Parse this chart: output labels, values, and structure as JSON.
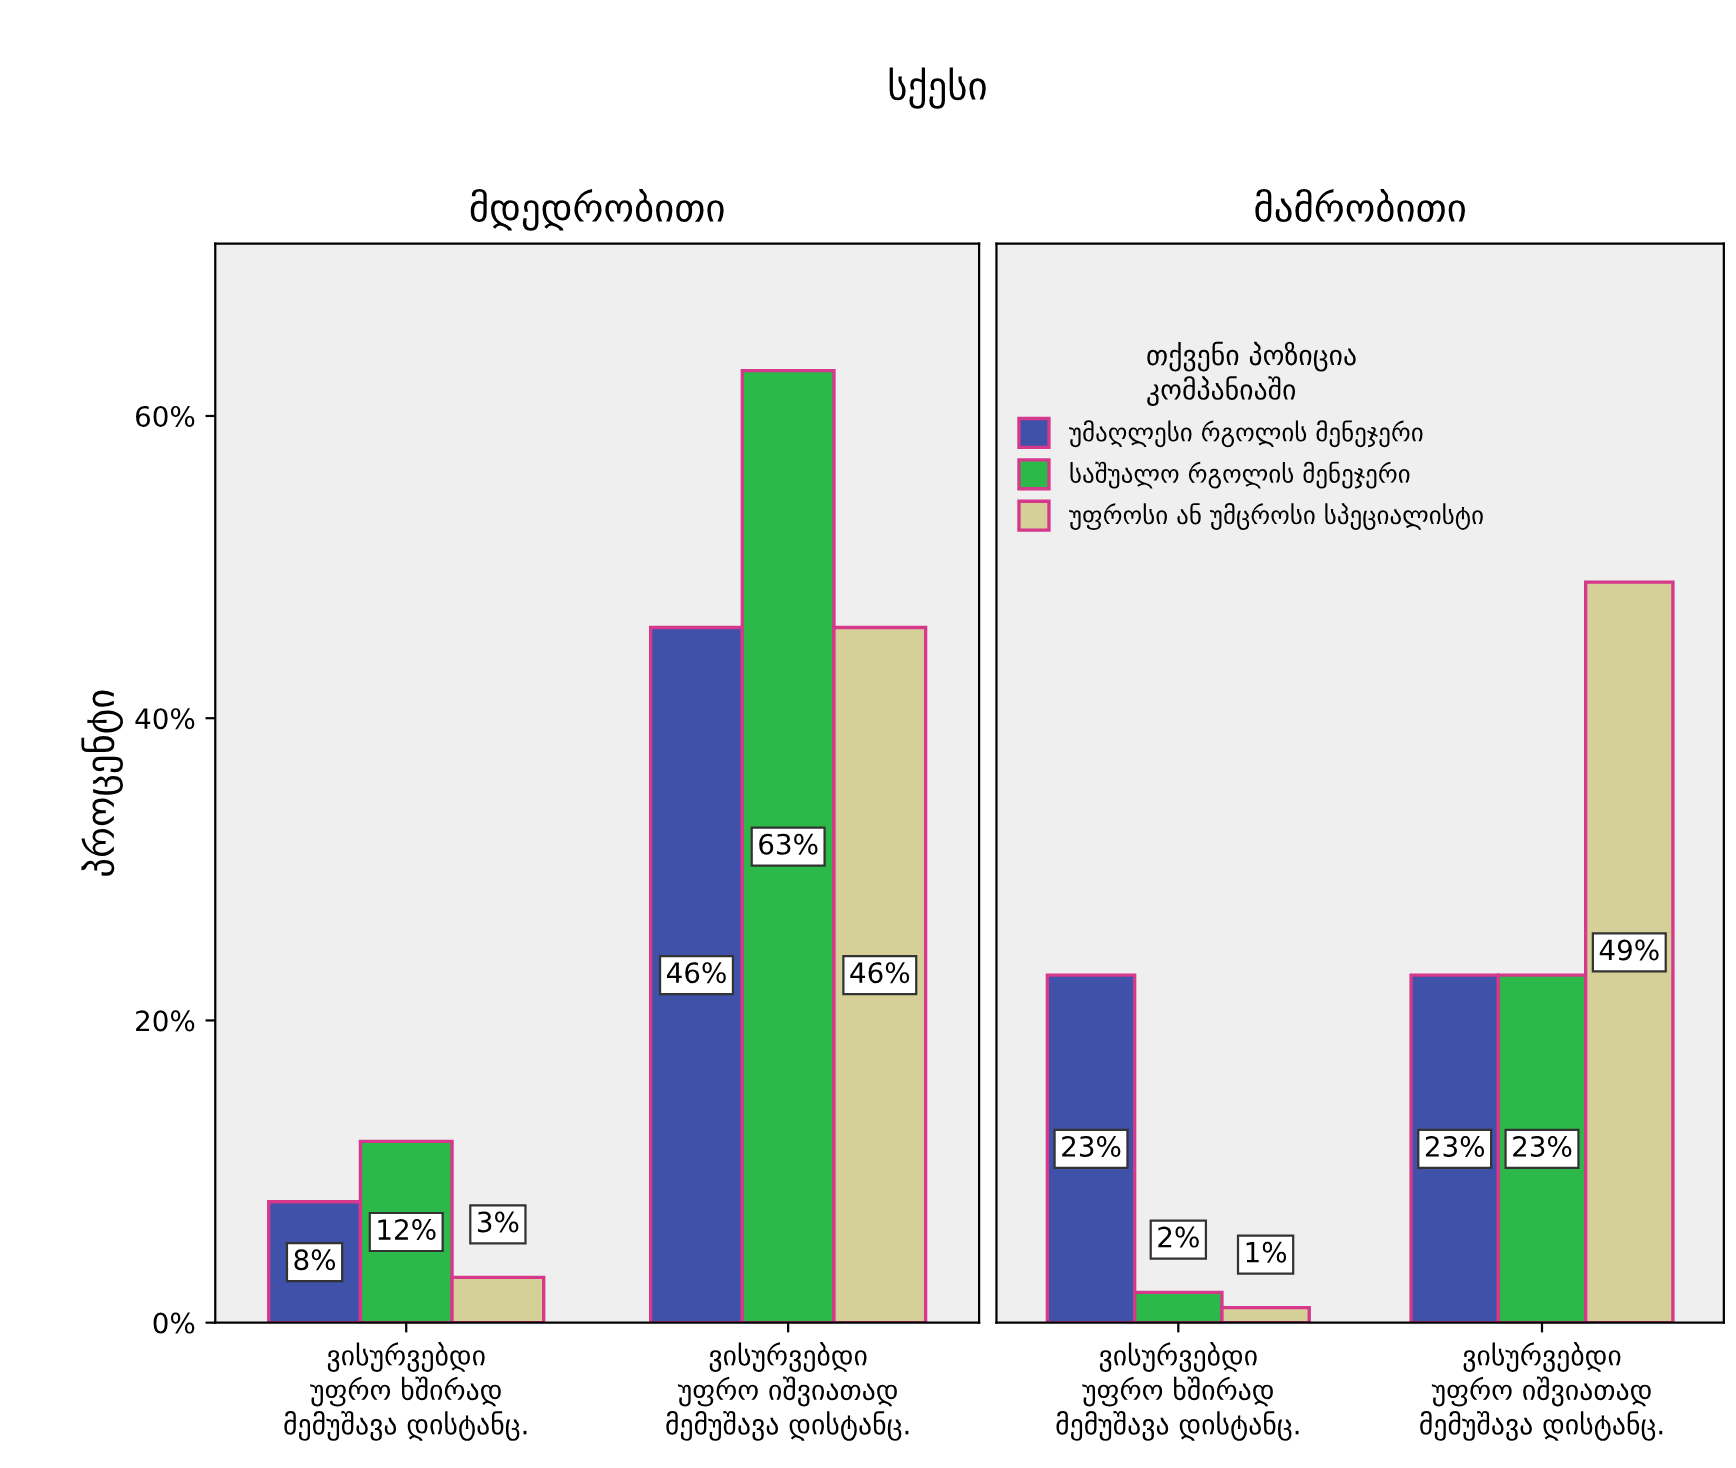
{
  "chart_data": [
    {
      "type": "bar",
      "title": "მდედრობითი",
      "ylabel": "პროცენტი",
      "annotations": [
        "სქესი"
      ],
      "categories": [
        "ვისურვებდი\nუფრო ხშირად\nმემუშავა დისტანც.",
        "ვისურვებდი\nუფრო იშვიათად\nმემუშავა დისტანც."
      ],
      "series": [
        {
          "color": "#3f51a8",
          "values": [
            8,
            46
          ],
          "value_labels": [
            "8%",
            "46%"
          ]
        },
        {
          "color": "#2db84a",
          "values": [
            12,
            63
          ],
          "value_labels": [
            "12%",
            "63%"
          ]
        },
        {
          "color": "#d5cf98",
          "values": [
            3,
            46
          ],
          "value_labels": [
            "3%",
            "46%"
          ]
        }
      ],
      "ylim": [
        0,
        71.4
      ],
      "yticks": [
        {
          "value": 0,
          "label": "0%"
        },
        {
          "value": 20,
          "label": "20%"
        },
        {
          "value": 40,
          "label": "40%"
        },
        {
          "value": 60,
          "label": "60%"
        }
      ],
      "grid": false
    },
    {
      "type": "bar",
      "title": "მამრობითი",
      "legend_title": "თქვენი პოზიცია\nკომპანიაში",
      "categories": [
        "ვისურვებდი\nუფრო ხშირად\nმემუშავა დისტანც.",
        "ვისურვებდი\nუფრო იშვიათად\nმემუშავა დისტანც."
      ],
      "series": [
        {
          "name": "უმაღლესი რგოლის მენეჯერი",
          "color": "#3f51a8",
          "values": [
            23,
            23
          ],
          "value_labels": [
            "23%",
            "23%"
          ]
        },
        {
          "name": "საშუალო რგოლის მენეჯერი",
          "color": "#2db84a",
          "values": [
            2,
            23
          ],
          "value_labels": [
            "2%",
            "23%"
          ]
        },
        {
          "name": "უფროსი ან უმცროსი სპეციალისტი",
          "color": "#d5cf98",
          "values": [
            1,
            49
          ],
          "value_labels": [
            "1%",
            "49%"
          ]
        }
      ],
      "ylim": [
        0,
        71.4
      ],
      "tick_labels": "x",
      "grid": false,
      "legend": "top left"
    }
  ]
}
